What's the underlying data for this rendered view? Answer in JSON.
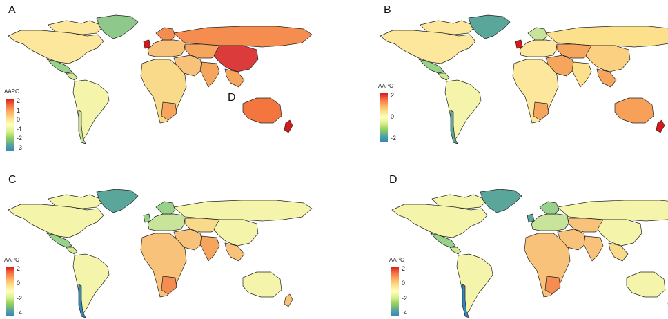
{
  "legend_colors": [
    "#d7191c",
    "#f46d43",
    "#fdae61",
    "#fee08b",
    "#ffffbf",
    "#d9ef8b",
    "#91cf60",
    "#5aa69a",
    "#3288bd"
  ],
  "panels": [
    {
      "letter": "A",
      "legend_title": "AAPC",
      "ticks": [
        "2",
        "1",
        "0",
        "-1",
        "-2",
        "-3"
      ],
      "regions": {
        "north_america": "#fde79c",
        "greenland": "#8fc88b",
        "canada_arctic": "#fde79c",
        "mexico": "#98d18a",
        "central_america": "#cfe98f",
        "south_america": "#f4f4aa",
        "chile": "#c8e49a",
        "europe": "#f9c27a",
        "scandinavia": "#f48d4f",
        "uk": "#d7191c",
        "russia": "#f48d4f",
        "china": "#dc3b3b",
        "central_asia": "#f6a55d",
        "middle_east": "#f9c27a",
        "india": "#f6a55d",
        "southeast_asia": "#f6a55d",
        "africa": "#f9d98a",
        "southern_africa": "#f6a55d",
        "australia": "#f4763f",
        "new_zealand": "#d7191c"
      }
    },
    {
      "letter": "B",
      "legend_title": "AAPC",
      "ticks": [
        "2",
        "0",
        "-2"
      ],
      "regions": {
        "north_america": "#fde79c",
        "greenland": "#5aa69a",
        "canada_arctic": "#fde79c",
        "mexico": "#98d18a",
        "central_america": "#cfe98f",
        "south_america": "#f4f4aa",
        "chile": "#5aa69a",
        "europe": "#fde79c",
        "scandinavia": "#c8e49a",
        "uk": "#d7191c",
        "russia": "#fde08b",
        "china": "#fcd081",
        "central_asia": "#f6a55d",
        "middle_east": "#f6a55d",
        "india": "#fde08b",
        "southeast_asia": "#f6a55d",
        "africa": "#fde79c",
        "southern_africa": "#f6a55d",
        "australia": "#f6a05a",
        "new_zealand": "#d7191c"
      }
    },
    {
      "letter": "C",
      "legend_title": "AAPC",
      "ticks": [
        "2",
        "0",
        "-2",
        "-4"
      ],
      "regions": {
        "north_america": "#f4f4aa",
        "greenland": "#5aa69a",
        "canada_arctic": "#f4f4aa",
        "mexico": "#98d18a",
        "central_america": "#cfe98f",
        "south_america": "#f4f4aa",
        "chile": "#3288bd",
        "europe": "#c8e49a",
        "scandinavia": "#98d18a",
        "uk": "#98d18a",
        "russia": "#f4f4aa",
        "china": "#f4f4aa",
        "central_asia": "#f9d98a",
        "middle_east": "#f9c27a",
        "india": "#f6a55d",
        "southeast_asia": "#f9c27a",
        "africa": "#f9c27a",
        "southern_africa": "#f48d4f",
        "australia": "#f4f4aa",
        "new_zealand": "#f9c27a"
      }
    },
    {
      "letter": "D",
      "legend_title": "AAPC",
      "ticks": [
        "2",
        "0",
        "-2",
        "-4"
      ],
      "regions": {
        "north_america": "#f4f4aa",
        "greenland": "#5aa69a",
        "canada_arctic": "#f4f4aa",
        "mexico": "#98d18a",
        "central_america": "#cfe98f",
        "south_america": "#f4f4aa",
        "chile": "#3288bd",
        "europe": "#c8e49a",
        "scandinavia": "#98d18a",
        "uk": "#5aa69a",
        "russia": "#f4f4aa",
        "china": "#f4f4aa",
        "central_asia": "#f9c27a",
        "middle_east": "#f9c27a",
        "india": "#f9c27a",
        "southeast_asia": "#f9d98a",
        "africa": "#f9c27a",
        "southern_africa": "#f48d4f",
        "australia": "#f4f4aa",
        "new_zealand": "#fde79c"
      }
    }
  ],
  "stray_label": "D"
}
